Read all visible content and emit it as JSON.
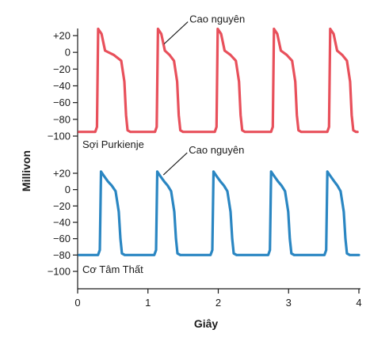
{
  "chart_data": {
    "type": "line",
    "ylabel": "Millivon",
    "xlabel": "Giây",
    "x_ticks": [
      "0",
      "1",
      "2",
      "3",
      "4"
    ],
    "xlim": [
      0,
      4
    ],
    "panels": [
      {
        "id": "purkinje",
        "series_name": "Sợi Purkienje",
        "color": "#e8505b",
        "y_ticks": [
          "+20",
          "0",
          "−20",
          "−40",
          "−60",
          "−80",
          "−100"
        ],
        "y_tick_values": [
          20,
          0,
          -20,
          -40,
          -60,
          -80,
          -100
        ],
        "ylim": [
          -100,
          20
        ],
        "annotation": "Cao nguyên",
        "annotation_target": {
          "x": 1.23,
          "y": 10
        },
        "baseline": -95,
        "peak": 28,
        "plateau": 0,
        "beats": [
          {
            "start": 0.28,
            "end": 0.7
          },
          {
            "start": 1.13,
            "end": 1.45
          },
          {
            "start": 1.98,
            "end": 2.33
          },
          {
            "start": 2.78,
            "end": 3.13
          },
          {
            "start": 3.58,
            "end": 3.91
          }
        ],
        "flat_end": 3.98
      },
      {
        "id": "ventricle",
        "series_name": "Cơ Tâm Thất",
        "color": "#2a86c2",
        "y_ticks": [
          "+20",
          "0",
          "−20",
          "−40",
          "−60",
          "−80",
          "−100"
        ],
        "y_tick_values": [
          20,
          0,
          -20,
          -40,
          -60,
          -80,
          -100
        ],
        "ylim": [
          -100,
          20
        ],
        "annotation": "Cao nguyên",
        "annotation_target": {
          "x": 1.22,
          "y": 18
        },
        "baseline": -80,
        "peak": 22,
        "plateau": 8,
        "beats": [
          {
            "start": 0.32,
            "end": 0.62
          },
          {
            "start": 1.12,
            "end": 1.41
          },
          {
            "start": 1.92,
            "end": 2.21
          },
          {
            "start": 2.74,
            "end": 3.03
          },
          {
            "start": 3.54,
            "end": 3.82
          }
        ],
        "flat_end": 4.0
      }
    ]
  }
}
